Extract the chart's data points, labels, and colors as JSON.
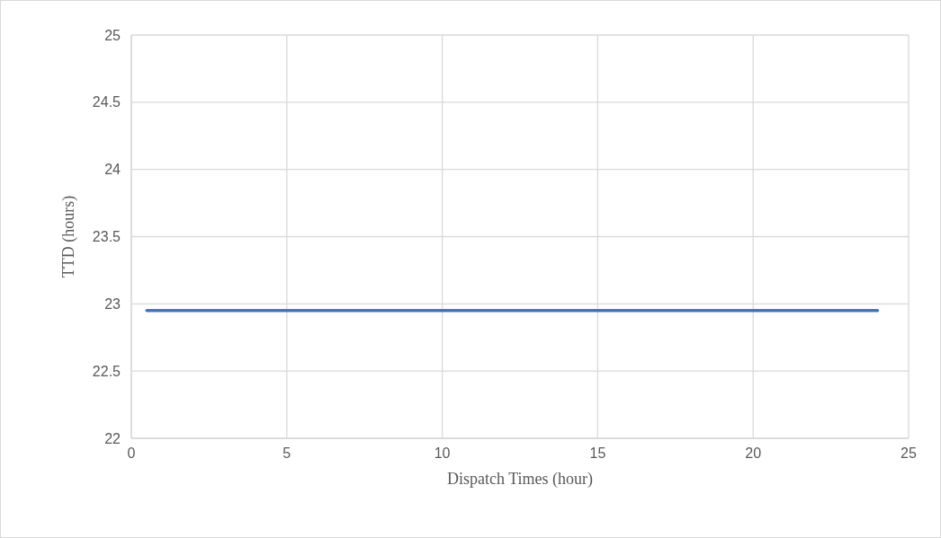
{
  "chart_data": {
    "type": "line",
    "xlabel": "Dispatch Times (hour)",
    "ylabel": "TTD (hours)",
    "x": [
      0.5,
      24
    ],
    "series": [
      {
        "color": "#4472c4",
        "values": [
          22.95,
          22.95
        ]
      }
    ],
    "xlim": [
      0,
      25
    ],
    "xticks": [
      0,
      5,
      10,
      15,
      20,
      25
    ],
    "ylim": [
      22,
      25
    ],
    "yticks": [
      22,
      22.5,
      23,
      23.5,
      24,
      24.5,
      25
    ],
    "grid": true,
    "marker": "none",
    "line_style": "solid"
  }
}
